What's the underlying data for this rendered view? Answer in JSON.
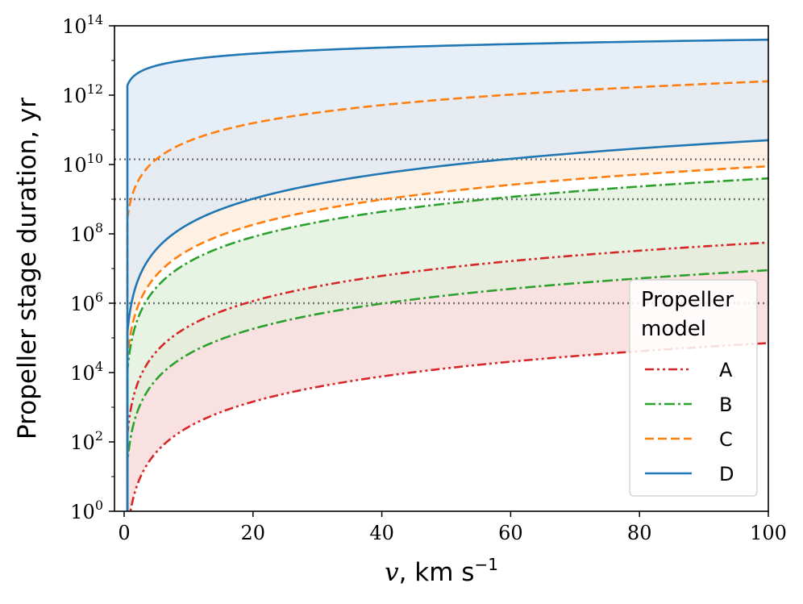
{
  "chart_data": {
    "type": "line",
    "xlabel_var": "v",
    "xlabel_unit": ", km s",
    "xlabel_unit_exp": "−1",
    "ylabel": "Propeller stage duration, yr",
    "xlim": [
      -1.5,
      100
    ],
    "ylim_log10": [
      0,
      14
    ],
    "yscale": "log",
    "x_ticks": [
      0,
      20,
      40,
      60,
      80,
      100
    ],
    "x_tick_labels": [
      "0",
      "20",
      "40",
      "60",
      "80",
      "100"
    ],
    "y_ticks_log10": [
      0,
      2,
      4,
      6,
      8,
      10,
      12,
      14
    ],
    "y_tick_base": "10",
    "y_tick_exps": [
      "0",
      "2",
      "4",
      "6",
      "8",
      "10",
      "12",
      "14"
    ],
    "reference_lines_log10": [
      10.15,
      9.0,
      6.0
    ],
    "legend": {
      "title_line1": "Propeller",
      "title_line2": "model",
      "placement": "lower-right"
    },
    "series": [
      {
        "name": "A",
        "color": "#d62728",
        "dash": "dashdotdot",
        "fill": "#f8d7d7",
        "upper_log10_at_100": 7.75,
        "lower_log10_at_100": 4.85
      },
      {
        "name": "B",
        "color": "#2ca02c",
        "dash": "dashdot",
        "fill": "#dff0db",
        "upper_log10_at_100": 9.6,
        "lower_log10_at_100": 6.95
      },
      {
        "name": "C",
        "color": "#ff7f0e",
        "dash": "dashed",
        "fill": "#fdebd9",
        "upper_log10_at_100": 12.4,
        "lower_log10_at_100": 9.95
      },
      {
        "name": "D",
        "color": "#1f77b4",
        "dash": "solid",
        "fill": "#dde9f5",
        "upper_log10_at_100": 13.6,
        "lower_log10_at_100": 10.7
      }
    ]
  }
}
